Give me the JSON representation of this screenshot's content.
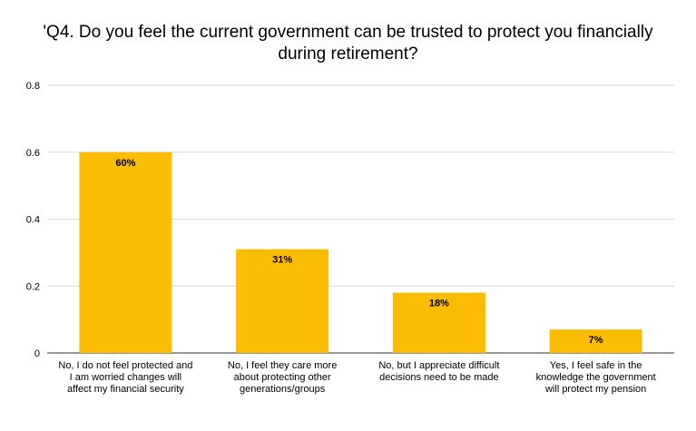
{
  "chart_data": {
    "type": "bar",
    "title_line1": "'Q4. Do you feel the current government can be trusted to protect you financially",
    "title_line2": "during retirement?",
    "categories": [
      "No, I do not feel protected and I am worried changes will affect my financial security",
      "No, I feel they care more about protecting other generations/groups",
      "No, but I appreciate difficult decisions need to be made",
      "Yes, I feel safe in the knowledge the government will protect my pension"
    ],
    "values": [
      0.6,
      0.31,
      0.18,
      0.07
    ],
    "data_labels": [
      "60%",
      "31%",
      "18%",
      "7%"
    ],
    "ylim": [
      0,
      0.8
    ],
    "yticks": [
      "0",
      "0.2",
      "0.4",
      "0.6",
      "0.8"
    ],
    "ytick_values": [
      0,
      0.2,
      0.4,
      0.6,
      0.8
    ],
    "grid": true,
    "legend": "none",
    "bar_color": "#FBBC04",
    "grid_color": "#D9D9D9"
  }
}
